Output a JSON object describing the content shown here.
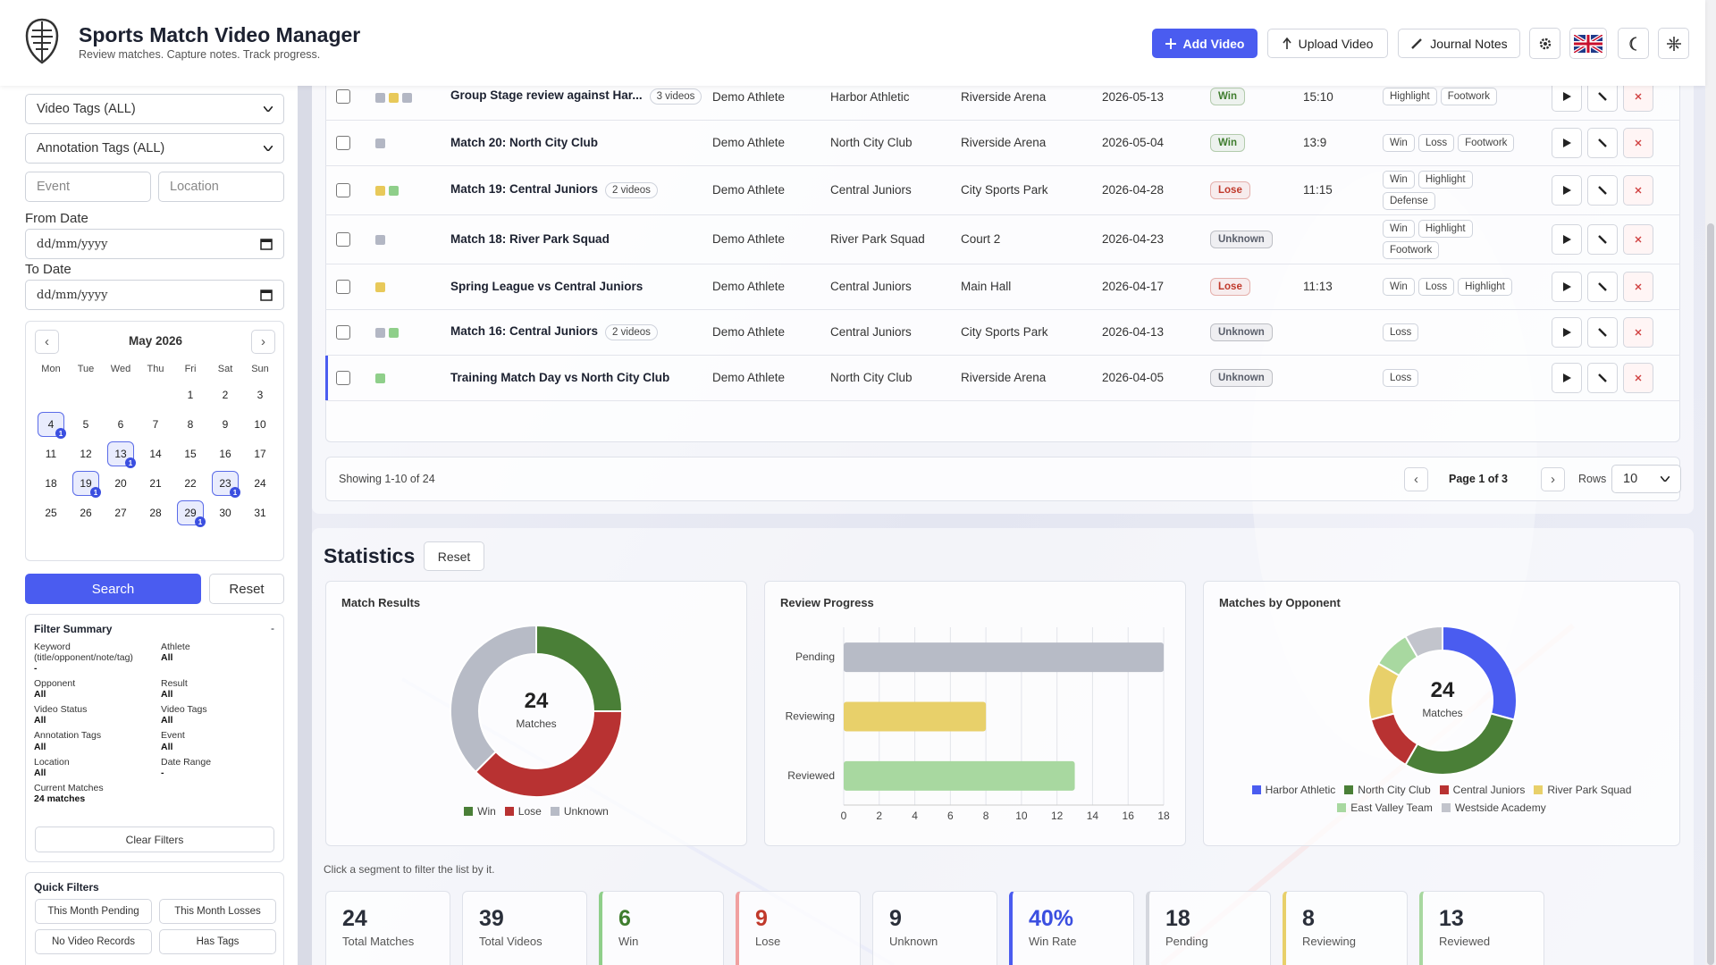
{
  "header": {
    "title": "Sports Match Video Manager",
    "subtitle": "Review matches. Capture notes. Track progress.",
    "buttons": [
      "Add Video",
      "Upload Video",
      "Journal Notes"
    ]
  },
  "sidebar": {
    "selects": [
      "Video Tags (ALL)",
      "Annotation Tags (ALL)"
    ],
    "inputs": [
      "Event",
      "Location"
    ],
    "from_label": "From Date",
    "to_label": "To Date",
    "date_placeholder": "dd/mm/yyyy",
    "calendar": {
      "month": "May 2026",
      "prev": "‹",
      "next": "›",
      "weekdays": [
        "Mon",
        "Tue",
        "Wed",
        "Thu",
        "Fri",
        "Sat",
        "Sun"
      ],
      "weeks": [
        [
          null,
          null,
          null,
          null,
          1,
          2,
          3
        ],
        [
          4,
          5,
          6,
          7,
          8,
          9,
          10
        ],
        [
          11,
          12,
          13,
          14,
          15,
          16,
          17
        ],
        [
          18,
          19,
          20,
          21,
          22,
          23,
          24
        ],
        [
          25,
          26,
          27,
          28,
          29,
          30,
          31
        ]
      ],
      "marked": [
        {
          "day": 4,
          "count": 1
        },
        {
          "day": 13,
          "count": 1
        },
        {
          "day": 19,
          "count": 1
        },
        {
          "day": 23,
          "count": 1
        },
        {
          "day": 29,
          "count": 1
        }
      ]
    },
    "search": "Search",
    "reset": "Reset",
    "summary": {
      "title": "Filter Summary",
      "toggle": "-",
      "items": [
        {
          "label": "Keyword (title/opponent/note/tag)",
          "value": "-"
        },
        {
          "label": "Athlete",
          "value": "All"
        },
        {
          "label": "Opponent",
          "value": "All"
        },
        {
          "label": "Result",
          "value": "All"
        },
        {
          "label": "Video Status",
          "value": "All"
        },
        {
          "label": "Video Tags",
          "value": "All"
        },
        {
          "label": "Annotation Tags",
          "value": "All"
        },
        {
          "label": "Event",
          "value": "All"
        },
        {
          "label": "Location",
          "value": "All"
        },
        {
          "label": "Date Range",
          "value": "-"
        },
        {
          "label": "Current Matches",
          "value": "24 matches"
        }
      ],
      "clear": "Clear Filters"
    },
    "quick": {
      "title": "Quick Filters",
      "buttons": [
        "This Month Pending",
        "This Month Losses",
        "No Video Records",
        "Has Tags"
      ]
    }
  },
  "table": {
    "rows": [
      {
        "colors": [
          "#b3b7c4",
          "#e8c95a",
          "#b3b7c4"
        ],
        "title": "Group Stage review against Har...",
        "videos": "3 videos",
        "athlete": "Demo Athlete",
        "opponent": "Harbor Athletic",
        "location": "Riverside Arena",
        "date": "2026-05-13",
        "result": "Win",
        "result_color": "#3f7d2e",
        "score": "15:10",
        "tags": [
          "Highlight",
          "Footwork"
        ]
      },
      {
        "colors": [
          "#b3b7c4"
        ],
        "title": "Match 20: North City Club",
        "athlete": "Demo Athlete",
        "opponent": "North City Club",
        "location": "Riverside Arena",
        "date": "2026-05-04",
        "result": "Win",
        "result_color": "#3f7d2e",
        "score": "13:9",
        "tags": [
          "Win",
          "Loss",
          "Footwork"
        ]
      },
      {
        "colors": [
          "#e8c95a",
          "#8fcf8a"
        ],
        "title": "Match 19: Central Juniors",
        "videos": "2 videos",
        "athlete": "Demo Athlete",
        "opponent": "Central Juniors",
        "location": "City Sports Park",
        "date": "2026-04-28",
        "result": "Lose",
        "result_color": "#c0392b",
        "score": "11:15",
        "tags": [
          "Win",
          "Highlight",
          "Defense"
        ]
      },
      {
        "colors": [
          "#b3b7c4"
        ],
        "title": "Match 18: River Park Squad",
        "athlete": "Demo Athlete",
        "opponent": "River Park Squad",
        "location": "Court 2",
        "date": "2026-04-23",
        "result": "Unknown",
        "result_color": "#5a5f6b",
        "tags": [
          "Win",
          "Highlight",
          "Footwork"
        ]
      },
      {
        "colors": [
          "#e8c95a"
        ],
        "title": "Spring League vs Central Juniors",
        "athlete": "Demo Athlete",
        "opponent": "Central Juniors",
        "location": "Main Hall",
        "date": "2026-04-17",
        "result": "Lose",
        "result_color": "#c0392b",
        "score": "11:13",
        "tags": [
          "Win",
          "Loss",
          "Highlight"
        ]
      },
      {
        "colors": [
          "#b3b7c4",
          "#8fcf8a"
        ],
        "title": "Match 16: Central Juniors",
        "videos": "2 videos",
        "athlete": "Demo Athlete",
        "opponent": "Central Juniors",
        "location": "City Sports Park",
        "date": "2026-04-13",
        "result": "Unknown",
        "result_color": "#5a5f6b",
        "tags": [
          "Loss"
        ]
      },
      {
        "colors": [
          "#8fcf8a"
        ],
        "title": "Training Match Day vs North City Club",
        "athlete": "Demo Athlete",
        "opponent": "North City Club",
        "location": "Riverside Arena",
        "date": "2026-04-05",
        "result": "Unknown",
        "result_color": "#5a5f6b",
        "tags": [
          "Loss"
        ],
        "highlighted": true
      }
    ],
    "showing": "Showing 1-10 of 24",
    "prev": "‹",
    "page": "Page 1 of 3",
    "next": "›",
    "rows_label": "Rows",
    "rows_value": "10"
  },
  "statistics": {
    "title": "Statistics",
    "reset": "Reset",
    "charts": [
      {
        "type": "donut",
        "title": "Match Results",
        "categories": [
          "Win",
          "Lose",
          "Unknown"
        ],
        "values": [
          6,
          9,
          9
        ],
        "colors": [
          "#4a7f37",
          "#b83232",
          "#b7bbc6"
        ],
        "center_value": 24,
        "center_label": "Matches"
      },
      {
        "type": "barh",
        "title": "Review Progress",
        "categories": [
          "Pending",
          "Reviewing",
          "Reviewed"
        ],
        "values": [
          18,
          8,
          13
        ],
        "colors": [
          "#b7bbc6",
          "#e8d06a",
          "#a8d8a0"
        ],
        "xlim": [
          0,
          18
        ],
        "xticks": [
          0,
          2,
          4,
          6,
          8,
          10,
          12,
          14,
          16,
          18
        ],
        "grid": true
      },
      {
        "type": "donut",
        "title": "Matches by Opponent",
        "categories": [
          "Harbor Athletic",
          "North City Club",
          "Central Juniors",
          "River Park Squad",
          "East Valley Team",
          "Westside Academy"
        ],
        "values": [
          7,
          7,
          3,
          3,
          2,
          2
        ],
        "colors": [
          "#4a5cf0",
          "#4a7f37",
          "#b83232",
          "#e8d06a",
          "#a8d8a0",
          "#c2c4cc"
        ],
        "center_value": 24,
        "center_label": "Matches"
      }
    ],
    "hint": "Click a segment to filter the list by it.",
    "cards": [
      {
        "value": 24,
        "label": "Total Matches"
      },
      {
        "value": 39,
        "label": "Total Videos"
      },
      {
        "value": 6,
        "label": "Win",
        "color": "#8fcf8a",
        "value_color": "#3f7d2e"
      },
      {
        "value": 9,
        "label": "Lose",
        "color": "#f0a0a0",
        "value_color": "#c0392b"
      },
      {
        "value": 9,
        "label": "Unknown"
      },
      {
        "value": 40,
        "value_label": "40%",
        "label": "Win Rate",
        "color": "#4a5cf0",
        "value_color": "#3b4fe0"
      },
      {
        "value": 18,
        "label": "Pending",
        "color": "#d5d7de"
      },
      {
        "value": 8,
        "label": "Reviewing",
        "color": "#e8d06a"
      },
      {
        "value": 13,
        "label": "Reviewed",
        "color": "#a8d8a0"
      }
    ]
  }
}
